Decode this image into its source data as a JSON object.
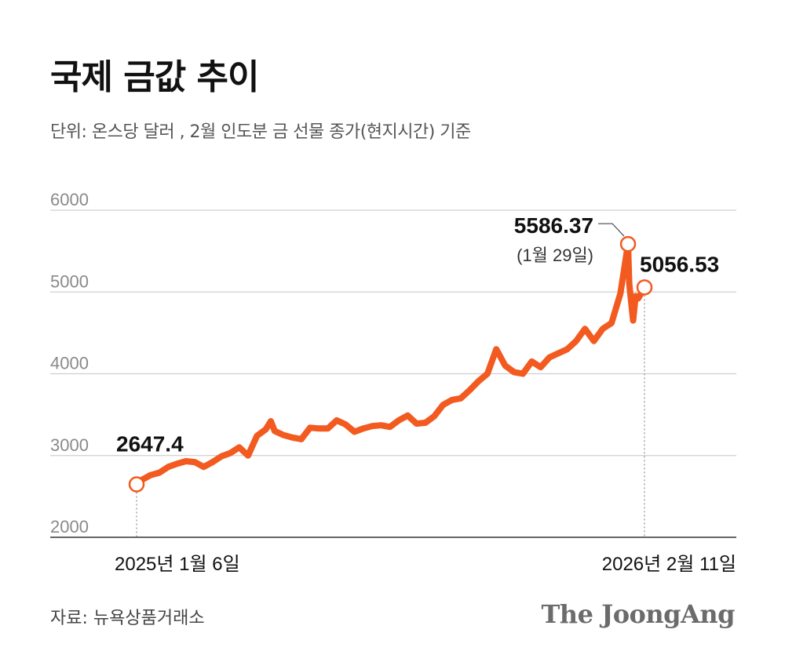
{
  "title": "국제 금값 추이",
  "subtitle": "단위: 온스당 달러 , 2월 인도분 금 선물 종가(현지시간) 기준",
  "source": "자료: 뉴욕상품거래소",
  "brand": "The JoongAng",
  "colors": {
    "line": "#f25a1f",
    "grid": "#cfcfcf",
    "axis": "#333333",
    "text": "#111111"
  },
  "chart_data": {
    "type": "line",
    "title": "국제 금값 추이",
    "ylabel": "",
    "xlabel": "",
    "ylim": [
      2000,
      6000
    ],
    "yticks": [
      2000,
      3000,
      4000,
      5000,
      6000
    ],
    "grid": true,
    "x_tick_labels": [
      "2025년 1월 6일",
      "2026년 2월 11일"
    ],
    "series": [
      {
        "x": [
          "2025-01-06",
          "2025-01-10",
          "2025-01-17",
          "2025-01-24",
          "2025-01-31",
          "2025-02-07",
          "2025-02-14",
          "2025-02-21",
          "2025-02-28",
          "2025-03-07",
          "2025-03-14",
          "2025-03-21",
          "2025-03-28",
          "2025-04-04",
          "2025-04-11",
          "2025-04-18",
          "2025-04-22",
          "2025-04-25",
          "2025-05-02",
          "2025-05-09",
          "2025-05-16",
          "2025-05-23",
          "2025-05-30",
          "2025-06-06",
          "2025-06-13",
          "2025-06-20",
          "2025-06-27",
          "2025-07-04",
          "2025-07-11",
          "2025-07-18",
          "2025-07-25",
          "2025-08-01",
          "2025-08-08",
          "2025-08-15",
          "2025-08-22",
          "2025-08-29",
          "2025-09-05",
          "2025-09-12",
          "2025-09-19",
          "2025-09-26",
          "2025-10-03",
          "2025-10-10",
          "2025-10-17",
          "2025-10-24",
          "2025-10-31",
          "2025-11-07",
          "2025-11-14",
          "2025-11-21",
          "2025-11-28",
          "2025-12-05",
          "2025-12-12",
          "2025-12-19",
          "2025-12-26",
          "2026-01-02",
          "2026-01-09",
          "2026-01-16",
          "2026-01-23",
          "2026-01-29",
          "2026-01-30",
          "2026-02-02",
          "2026-02-04",
          "2026-02-06",
          "2026-02-09",
          "2026-02-11"
        ],
        "values": [
          2647.4,
          2700,
          2760,
          2790,
          2860,
          2900,
          2930,
          2920,
          2860,
          2920,
          2990,
          3030,
          3100,
          3000,
          3240,
          3320,
          3420,
          3300,
          3250,
          3220,
          3200,
          3340,
          3330,
          3330,
          3430,
          3380,
          3290,
          3330,
          3360,
          3370,
          3350,
          3430,
          3490,
          3390,
          3400,
          3480,
          3620,
          3680,
          3700,
          3800,
          3910,
          4000,
          4300,
          4100,
          4020,
          4000,
          4150,
          4080,
          4200,
          4250,
          4300,
          4400,
          4550,
          4400,
          4550,
          4620,
          4980,
          5586.37,
          5100,
          4650,
          4950,
          4920,
          5000,
          5056.53
        ]
      }
    ],
    "annotations": [
      {
        "value": "2647.4",
        "date": ""
      },
      {
        "value": "5586.37",
        "date": "(1월 29일)"
      },
      {
        "value": "5056.53",
        "date": ""
      }
    ]
  }
}
